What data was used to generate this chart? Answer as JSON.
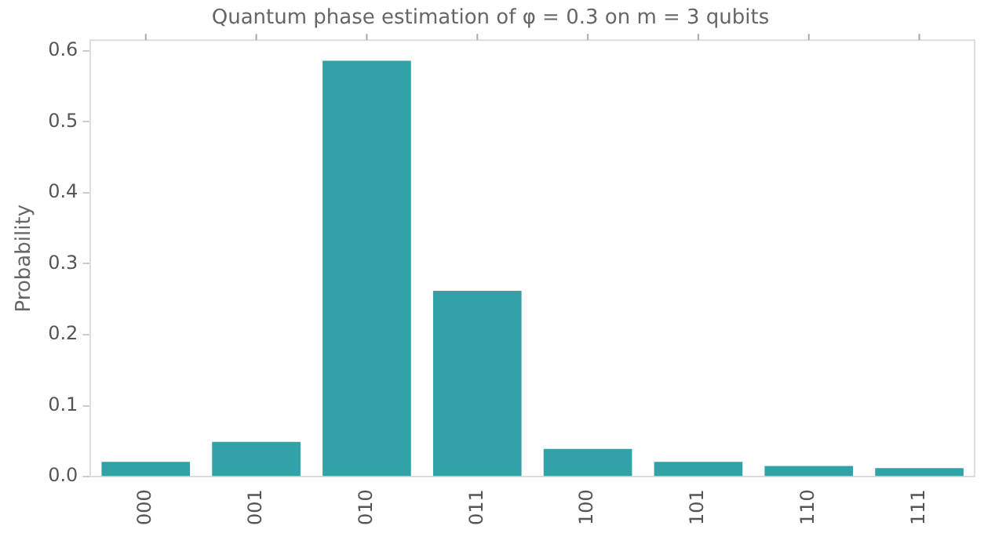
{
  "chart_data": {
    "type": "bar",
    "title": "Quantum phase estimation of φ = 0.3 on m = 3 qubits",
    "ylabel": "Probability",
    "categories": [
      "000",
      "001",
      "010",
      "011",
      "100",
      "101",
      "110",
      "111"
    ],
    "values": [
      0.021,
      0.049,
      0.586,
      0.262,
      0.039,
      0.021,
      0.015,
      0.012
    ],
    "color": "#31a3a8",
    "ylim": [
      0,
      0.615
    ],
    "yticks": [
      {
        "value": 0,
        "label": "0.0"
      },
      0.1,
      0.2,
      0.3,
      0.4,
      0.5,
      0.6
    ],
    "grid": false,
    "legend": false
  }
}
